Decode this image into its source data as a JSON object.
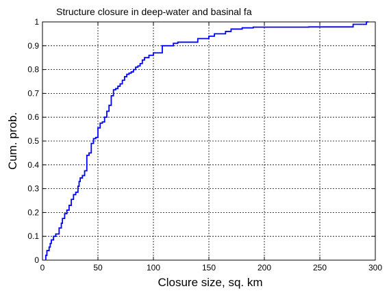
{
  "chart_data": {
    "type": "line",
    "title": "Structure closure in deep-water and basinal fa",
    "xlabel": "Closure size, sq. km",
    "ylabel": "Cum. prob.",
    "xlim": [
      0,
      300
    ],
    "ylim": [
      0,
      1
    ],
    "x_ticks": [
      0,
      50,
      100,
      150,
      200,
      250,
      300
    ],
    "y_ticks": [
      0,
      0.1,
      0.2,
      0.3,
      0.4,
      0.5,
      0.6,
      0.7,
      0.8,
      0.9,
      1
    ],
    "x_tick_labels": [
      "0",
      "50",
      "100",
      "150",
      "200",
      "250",
      "300"
    ],
    "y_tick_labels": [
      "0",
      "0.1",
      "0.2",
      "0.3",
      "0.4",
      "0.5",
      "0.6",
      "0.7",
      "0.8",
      "0.9",
      "1"
    ],
    "grid": true,
    "line_color": "#0000ff",
    "series": [
      {
        "step": "post",
        "x": [
          3,
          4,
          6,
          7,
          8,
          10,
          12,
          15,
          17,
          18,
          20,
          22,
          24,
          26,
          28,
          30,
          32,
          33,
          34,
          36,
          38,
          40,
          42,
          44,
          46,
          48,
          50,
          52,
          54,
          56,
          58,
          60,
          62,
          64,
          66,
          68,
          70,
          72,
          74,
          76,
          78,
          80,
          82,
          84,
          86,
          88,
          90,
          92,
          96,
          100,
          108,
          118,
          122,
          140,
          150,
          155,
          165,
          170,
          180,
          190,
          200,
          240,
          280,
          292,
          294
        ],
        "y": [
          0.02,
          0.04,
          0.055,
          0.07,
          0.085,
          0.1,
          0.11,
          0.135,
          0.155,
          0.175,
          0.195,
          0.21,
          0.23,
          0.255,
          0.275,
          0.285,
          0.31,
          0.33,
          0.345,
          0.355,
          0.375,
          0.44,
          0.45,
          0.49,
          0.51,
          0.515,
          0.555,
          0.575,
          0.58,
          0.6,
          0.625,
          0.65,
          0.69,
          0.715,
          0.72,
          0.73,
          0.74,
          0.755,
          0.77,
          0.78,
          0.785,
          0.79,
          0.8,
          0.81,
          0.815,
          0.825,
          0.84,
          0.85,
          0.86,
          0.87,
          0.9,
          0.91,
          0.915,
          0.93,
          0.94,
          0.95,
          0.96,
          0.97,
          0.975,
          0.978,
          0.978,
          0.979,
          0.99,
          1.0,
          1.0
        ]
      }
    ]
  }
}
